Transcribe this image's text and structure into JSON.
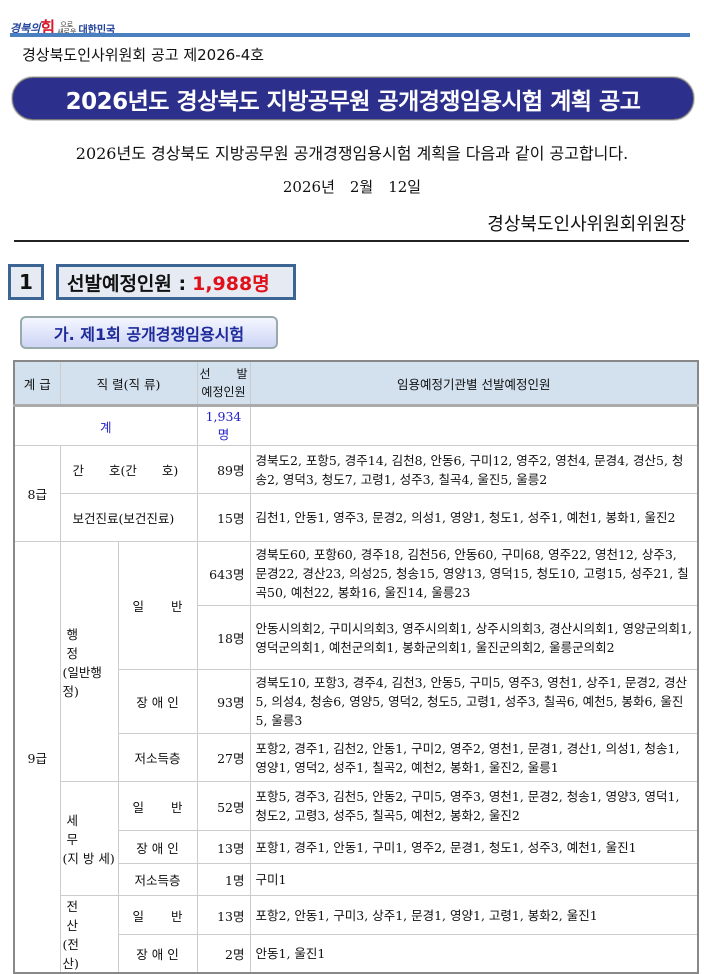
{
  "logo": {
    "text_a": "경북의",
    "text_b": "힘",
    "text_c1": "으로",
    "text_c2": "새로운",
    "text_d": "대한민국"
  },
  "header": {
    "notice_number": "경상북도인사위원회 공고 제2026-4호",
    "title": "2026년도 경상북도 지방공무원 공개경쟁임용시험 계획 공고",
    "intro": "2026년도 경상북도 지방공무원 공개경쟁임용시험 계획을 다음과 같이 공고합니다.",
    "date": "2026년　2월　12일",
    "signer": "경상북도인사위원회위원장"
  },
  "section1": {
    "number": "1",
    "label": "선발예정인원 :",
    "total": "1,988명"
  },
  "subsection": {
    "title": "가. 제1회 공개경쟁임용시험"
  },
  "colors": {
    "title_banner": "#2c2f8c",
    "header_row": "#d3e1ef",
    "accent_red": "#e0101a",
    "total_blue": "#1f1fc8"
  },
  "table": {
    "headers": {
      "grade": "계 급",
      "series": "직 렬(직 류)",
      "count_top": "선　발",
      "count_bottom": "예정인원",
      "agencies": "임용예정기관별 선발예정인원"
    },
    "total": {
      "label": "계",
      "count": "1,934명"
    },
    "grade8": {
      "label": "8급",
      "rows": [
        {
          "series": "간　　호(간　　호)",
          "count": "89명",
          "agencies": "경북도2, 포항5, 경주14, 김천8, 안동6, 구미12, 영주2, 영천4, 문경4, 경산5, 청송2, 영덕3, 청도7, 고령1, 성주3, 칠곡4, 울진5, 울릉2"
        },
        {
          "series": "보건진료(보건진료)",
          "count": "15명",
          "agencies": "김천1, 안동1, 영주3, 문경2, 의성1, 영양1, 청도1, 성주1, 예천1, 봉화1, 울진2"
        }
      ]
    },
    "grade9": {
      "label": "9급",
      "admin": {
        "series_top": "행　　정",
        "series_bottom": "(일반행정)",
        "general_label": "일　　반",
        "rows": [
          {
            "count": "643명",
            "agencies": "경북도60, 포항60, 경주18, 김천56, 안동60, 구미68, 영주22, 영천12, 상주3, 문경22, 경산23, 의성25, 청송15, 영양13, 영덕15, 청도10, 고령15, 성주21, 칠곡50, 예천22, 봉화16, 울진14, 울릉23"
          },
          {
            "count": "18명",
            "agencies": "안동시의회2, 구미시의회3, 영주시의회1, 상주시의회3, 경산시의회1, 영양군의회1, 영덕군의회1, 예천군의회1, 봉화군의회1, 울진군의회2, 울릉군의회2"
          },
          {
            "type": "장 애 인",
            "count": "93명",
            "agencies": "경북도10, 포항3, 경주4, 김천3, 안동5, 구미5, 영주3, 영천1, 상주1, 문경2, 경산5, 의성4, 청송6, 영양5, 영덕2, 청도5, 고령1, 성주3, 칠곡6, 예천5, 봉화6, 울진5, 울릉3"
          },
          {
            "type": "저소득층",
            "count": "27명",
            "agencies": "포항2, 경주1, 김천2, 안동1, 구미2, 영주2, 영천1, 문경1, 경산1, 의성1, 청송1, 영양1, 영덕2, 성주1, 칠곡2, 예천2, 봉화1, 울진2, 울릉1"
          }
        ]
      },
      "tax": {
        "series_top": "세　　무",
        "series_bottom": "(지 방 세)",
        "rows": [
          {
            "type": "일　　반",
            "count": "52명",
            "agencies": "포항5, 경주3, 김천5, 안동2, 구미5, 영주3, 영천1, 문경2, 청송1, 영양3, 영덕1, 청도2, 고령3, 성주5, 칠곡5, 예천2, 봉화2, 울진2"
          },
          {
            "type": "장 애 인",
            "count": "13명",
            "agencies": "포항1, 경주1, 안동1, 구미1, 영주2, 문경1, 청도1, 성주3, 예천1, 울진1"
          },
          {
            "type": "저소득층",
            "count": "1명",
            "agencies": "구미1"
          }
        ]
      },
      "computing": {
        "series_top": "전　　산",
        "series_bottom": "(전　　산)",
        "rows": [
          {
            "type": "일　　반",
            "count": "13명",
            "agencies": "포항2, 안동1, 구미3, 상주1, 문경1, 영양1, 고령1, 봉화2, 울진1"
          },
          {
            "type": "장 애 인",
            "count": "2명",
            "agencies": "안동1, 울진1"
          }
        ]
      }
    }
  }
}
